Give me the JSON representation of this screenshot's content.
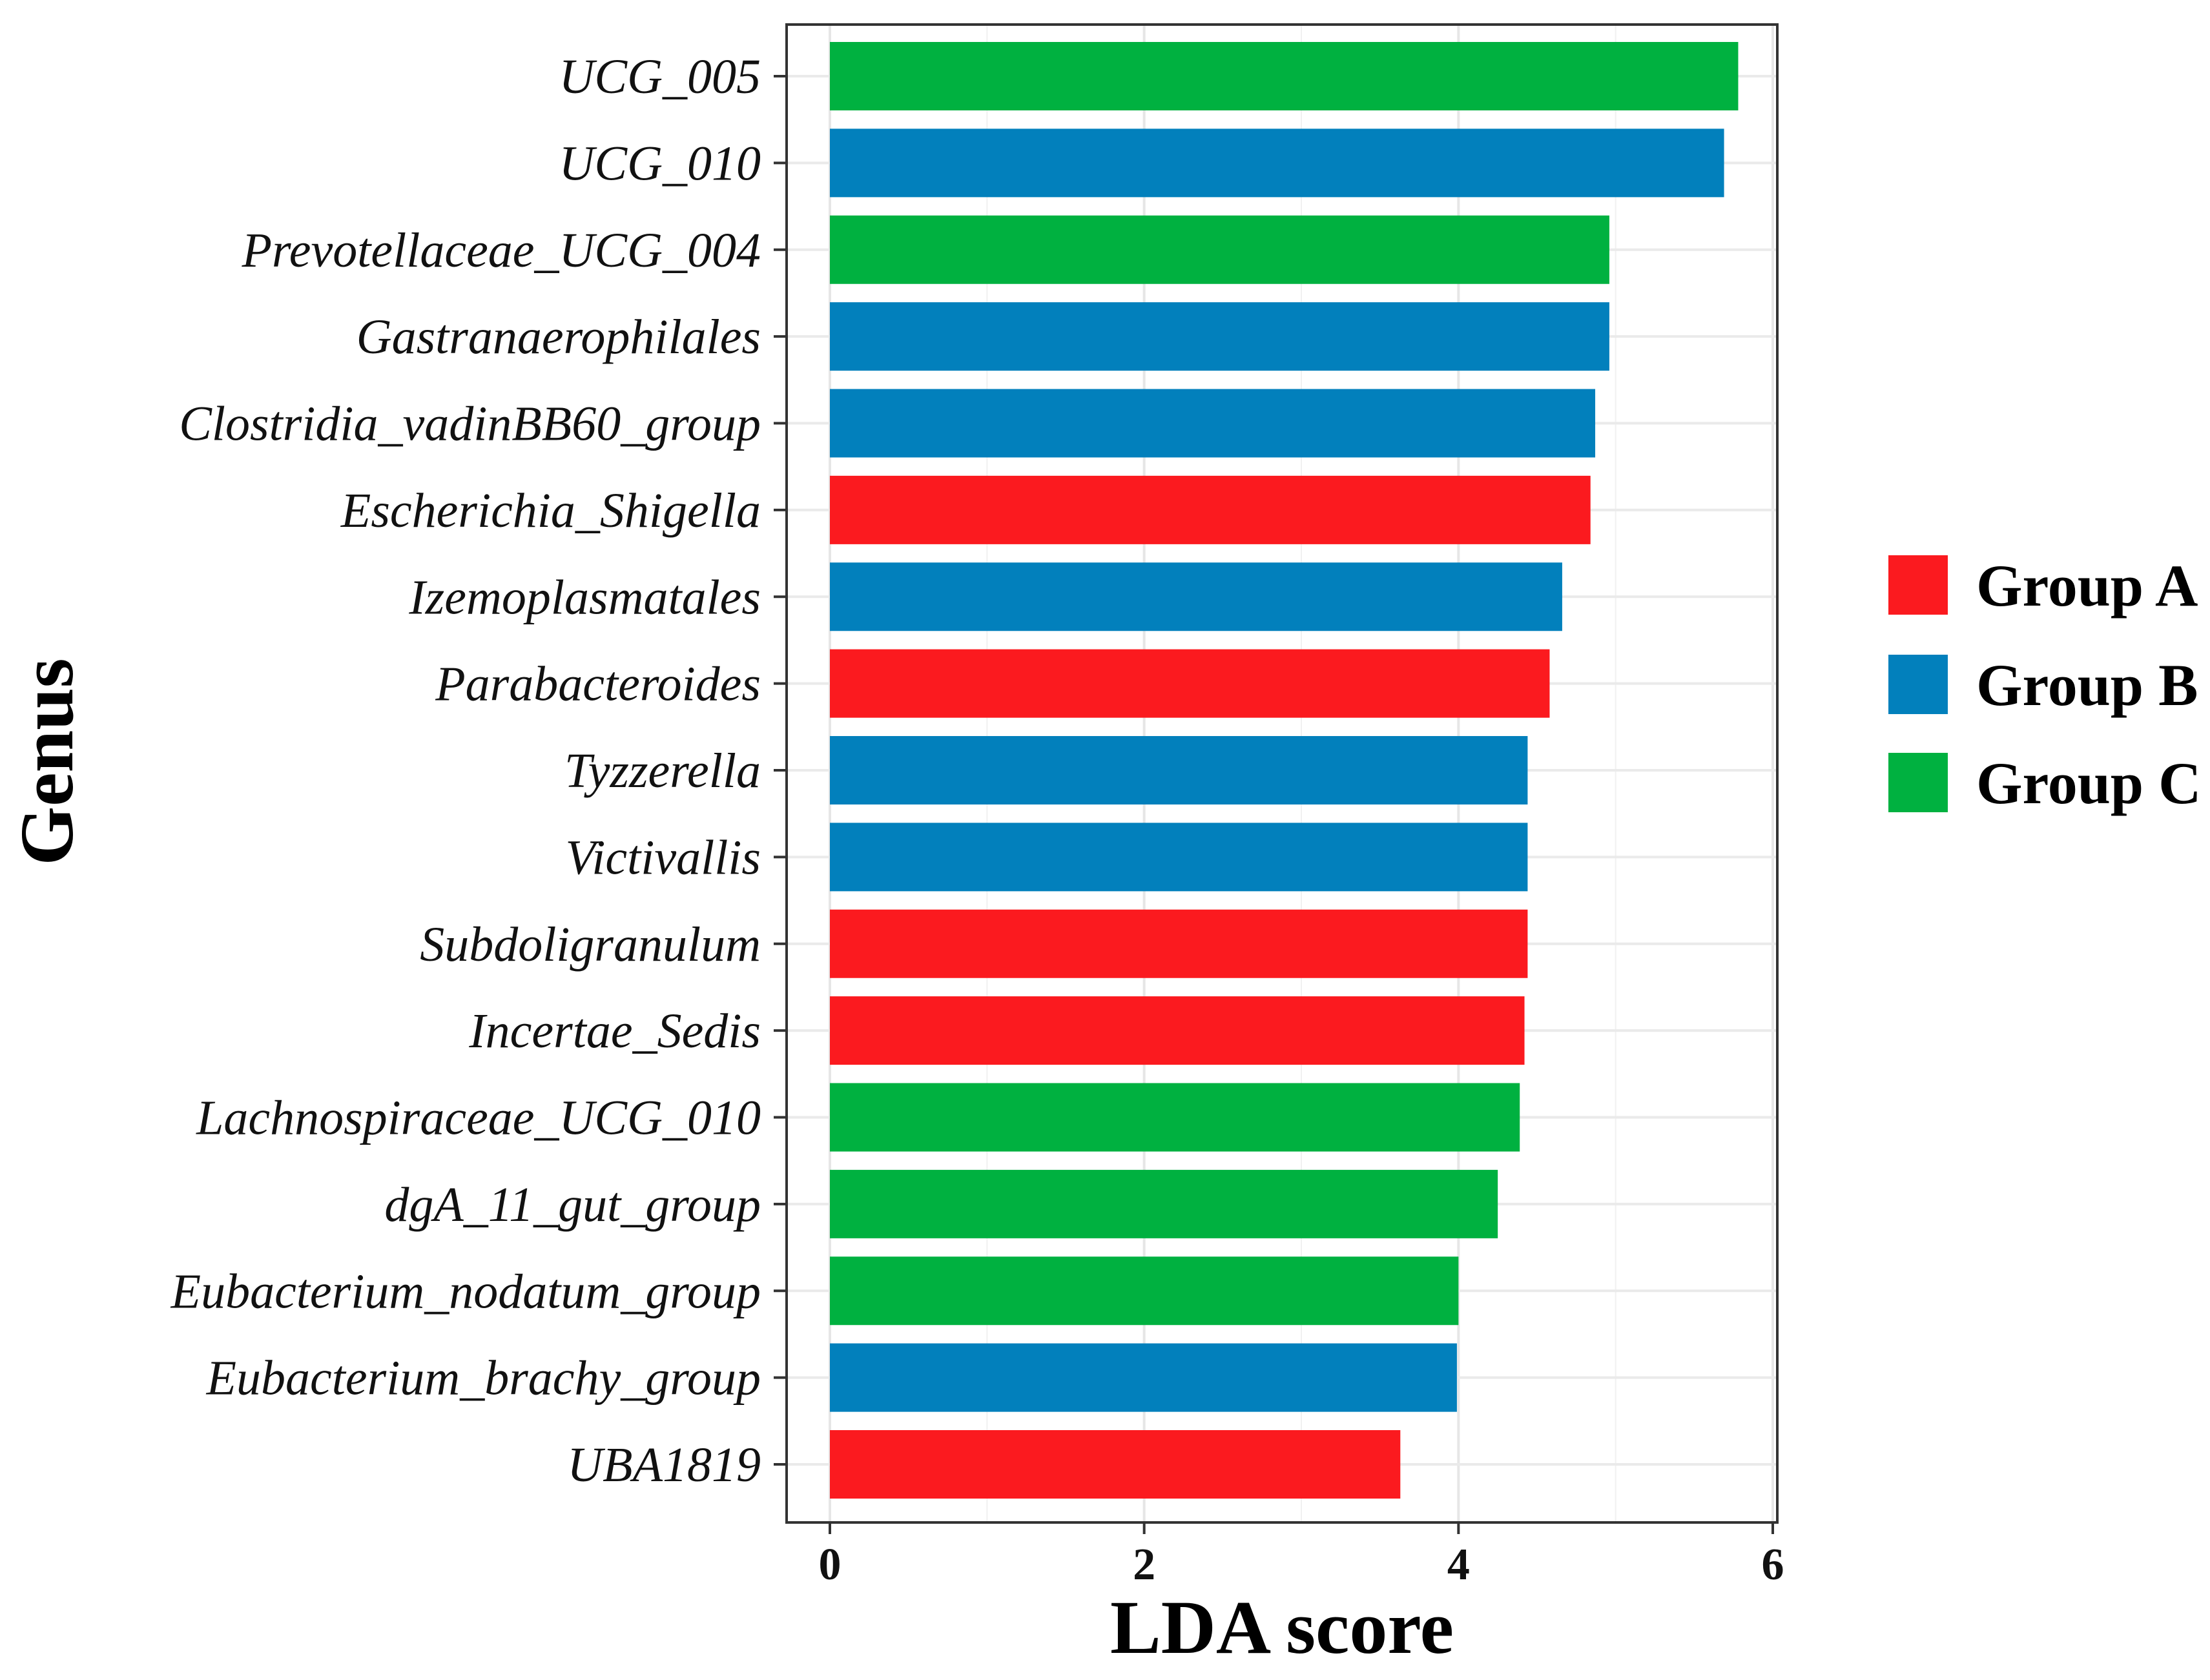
{
  "chart_data": {
    "type": "bar",
    "orientation": "horizontal",
    "xlabel": "LDA score",
    "ylabel": "Genus",
    "xlim": [
      0,
      6
    ],
    "xticks": [
      0,
      2,
      4,
      6
    ],
    "grid": true,
    "legend_position": "right",
    "legend": [
      {
        "label": "Group A",
        "color": "#fb1a1f"
      },
      {
        "label": "Group B",
        "color": "#0280bc"
      },
      {
        "label": "Group C",
        "color": "#00b140"
      }
    ],
    "categories": [
      "UCG_005",
      "UCG_010",
      "Prevotellaceae_UCG_004",
      "Gastranaerophilales",
      "Clostridia_vadinBB60_group",
      "Escherichia_Shigella",
      "Izemoplasmatales",
      "Parabacteroides",
      "Tyzzerella",
      "Victivallis",
      "Subdoligranulum",
      "Incertae_Sedis",
      "Lachnospiraceae_UCG_010",
      "dgA_11_gut_group",
      "Eubacterium_nodatum_group",
      "Eubacterium_brachy_group",
      "UBA1819"
    ],
    "values": [
      5.78,
      5.69,
      4.96,
      4.96,
      4.87,
      4.84,
      4.66,
      4.58,
      4.44,
      4.44,
      4.44,
      4.42,
      4.39,
      4.25,
      4.0,
      3.99,
      3.63
    ],
    "groups": [
      "Group C",
      "Group B",
      "Group C",
      "Group B",
      "Group B",
      "Group A",
      "Group B",
      "Group A",
      "Group B",
      "Group B",
      "Group A",
      "Group A",
      "Group C",
      "Group C",
      "Group C",
      "Group B",
      "Group A"
    ]
  }
}
